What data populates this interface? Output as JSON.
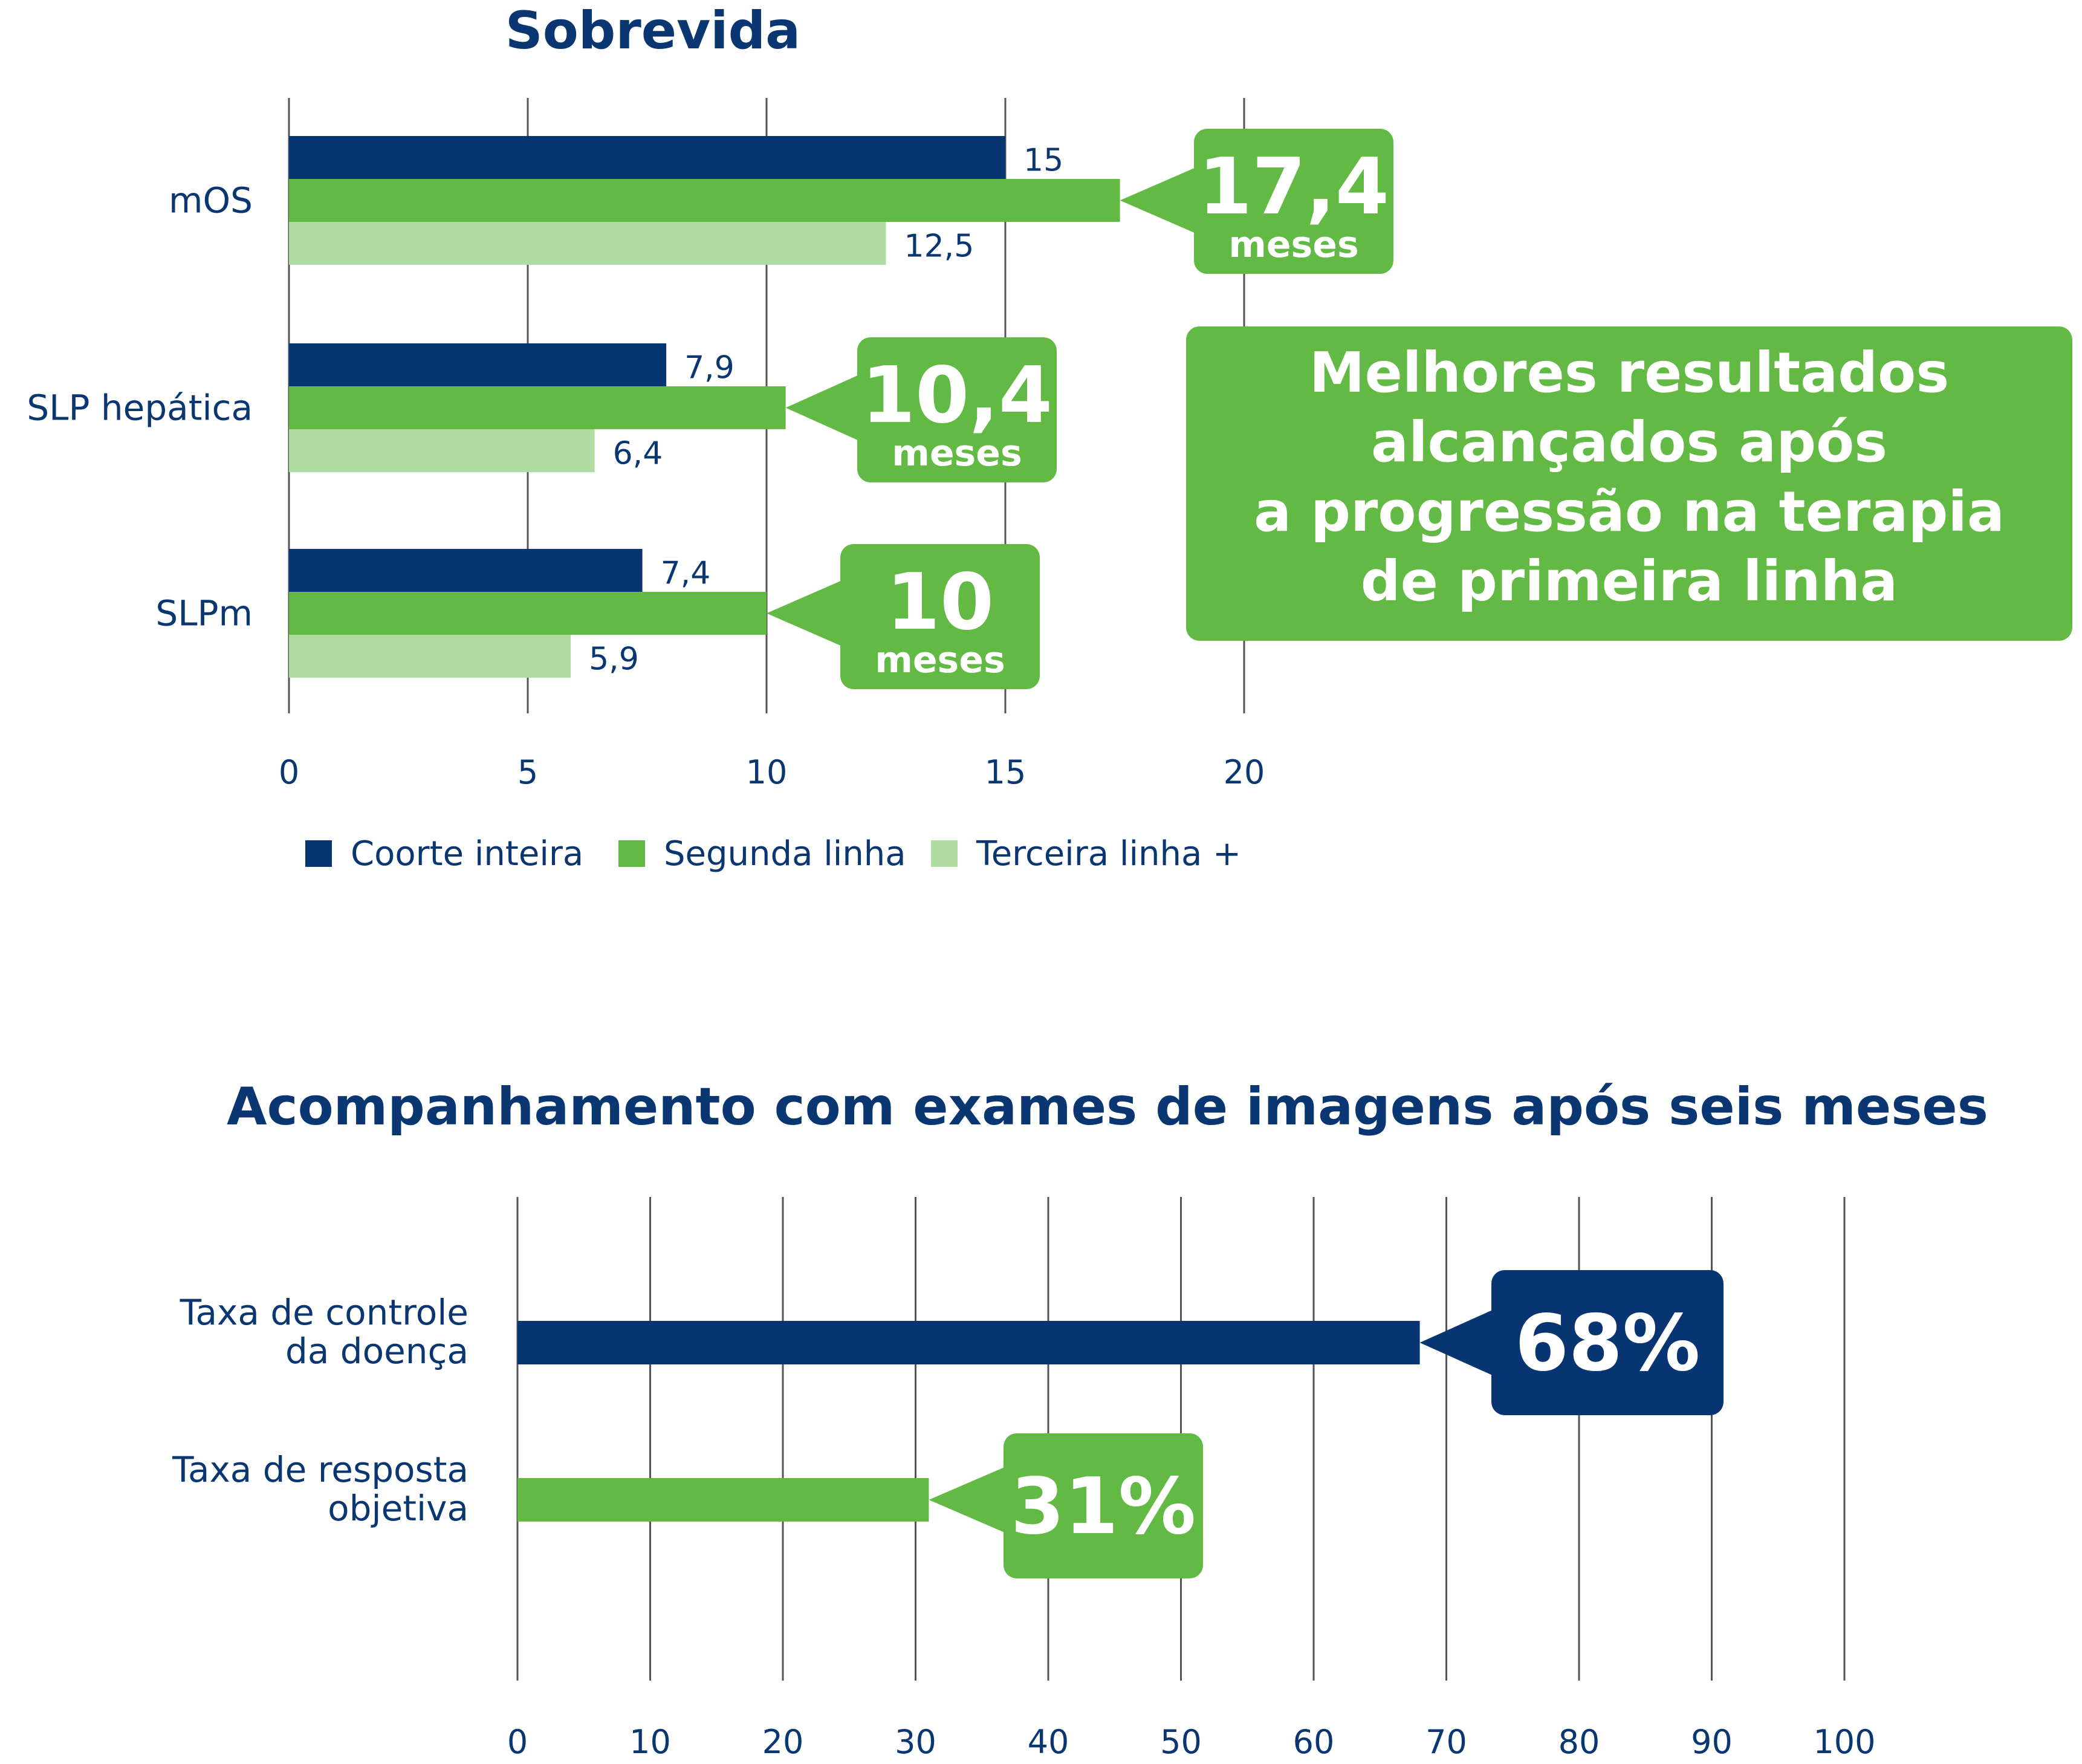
{
  "colors": {
    "navy": "#063572",
    "green": "#62b944",
    "light_green": "#b0dba1",
    "grid": "#555555",
    "text": "#0a3671",
    "white": "#ffffff"
  },
  "chart_data": [
    {
      "type": "bar",
      "orientation": "horizontal",
      "title": "Sobrevida",
      "categories": [
        "mOS",
        "SLP hepática",
        "SLPm"
      ],
      "series": [
        {
          "name": "Coorte inteira",
          "color": "#063572",
          "values": [
            15,
            7.9,
            7.4
          ],
          "labels": [
            "15",
            "7,9",
            "7,4"
          ]
        },
        {
          "name": "Segunda linha",
          "color": "#62b944",
          "values": [
            17.4,
            10.4,
            10
          ],
          "labels": [
            "",
            "",
            ""
          ]
        },
        {
          "name": "Terceira linha +",
          "color": "#b0dba1",
          "values": [
            12.5,
            6.4,
            5.9
          ],
          "labels": [
            "12,5",
            "6,4",
            "5,9"
          ]
        }
      ],
      "xlim": [
        0,
        20
      ],
      "xticks": [
        0,
        5,
        10,
        15,
        20
      ],
      "grid": true,
      "legend": "bottom",
      "callouts": [
        {
          "value": "17,4",
          "unit": "meses"
        },
        {
          "value": "10,4",
          "unit": "meses"
        },
        {
          "value": "10",
          "unit": "meses"
        }
      ],
      "highlight_box": [
        "Melhores resultados",
        "alcançados após",
        "a progressão na terapia",
        "de primeira linha"
      ]
    },
    {
      "type": "bar",
      "orientation": "horizontal",
      "title": "Acompanhamento com exames de imagens após seis meses",
      "categories": [
        [
          "Taxa de controle",
          "da doença"
        ],
        [
          "Taxa de resposta",
          "objetiva"
        ]
      ],
      "values": [
        68,
        31
      ],
      "colors": [
        "#063572",
        "#62b944"
      ],
      "xlim": [
        0,
        100
      ],
      "xticks": [
        0,
        10,
        20,
        30,
        40,
        50,
        60,
        70,
        80,
        90,
        100
      ],
      "grid": true,
      "callouts": [
        "68%",
        "31%"
      ]
    }
  ]
}
